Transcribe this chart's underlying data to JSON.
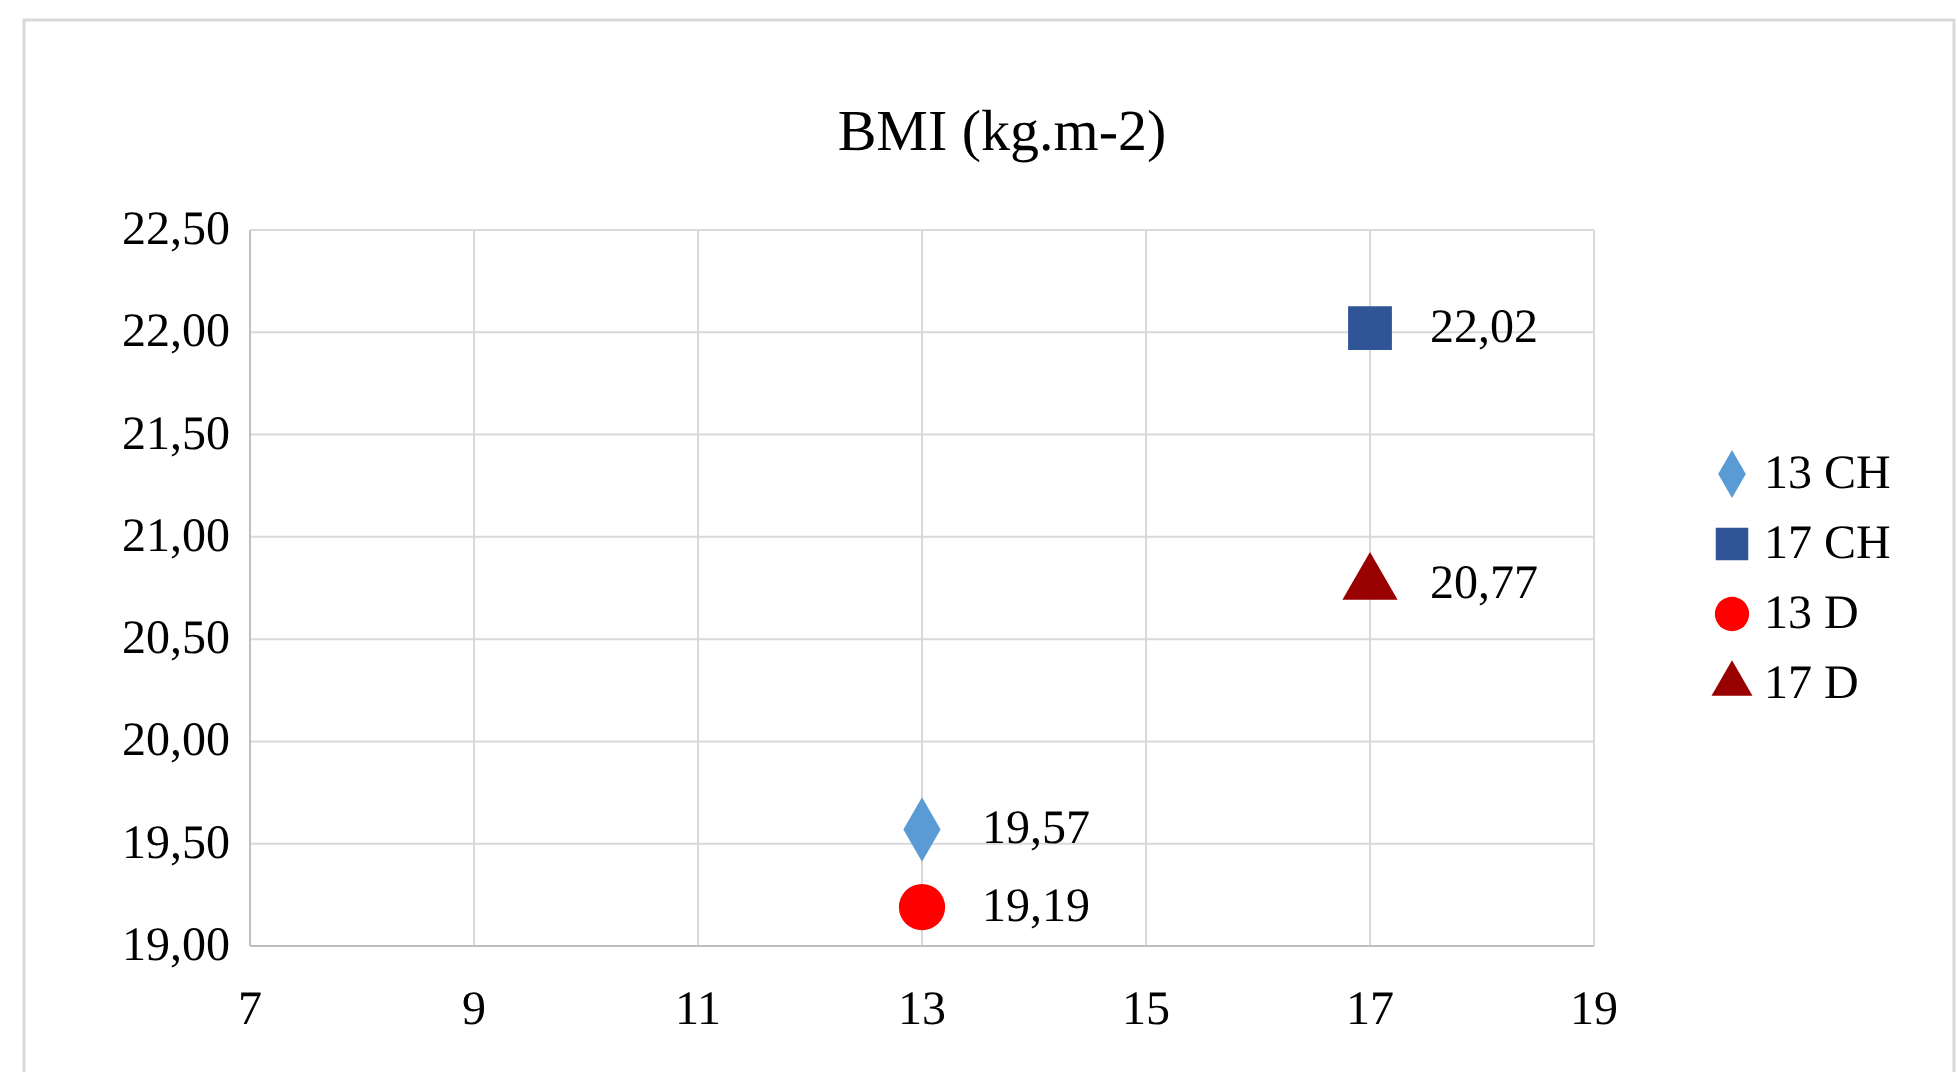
{
  "chart_data": {
    "type": "scatter",
    "title": "BMI (kg.m-2)",
    "x": [
      13,
      17
    ],
    "xlim": [
      7,
      19
    ],
    "xticks": [
      7,
      9,
      11,
      13,
      15,
      17,
      19
    ],
    "ylim": [
      19,
      22.5
    ],
    "yticks": [
      {
        "value": 19,
        "label": "19,00"
      },
      {
        "value": 19.5,
        "label": "19,50"
      },
      {
        "value": 20,
        "label": "20,00"
      },
      {
        "value": 20.5,
        "label": "20,50"
      },
      {
        "value": 21,
        "label": "21,00"
      },
      {
        "value": 21.5,
        "label": "21,50"
      },
      {
        "value": 22,
        "label": "22,00"
      },
      {
        "value": 22.5,
        "label": "22,50"
      }
    ],
    "grid": true,
    "legend": "right",
    "series": [
      {
        "name": "13 CH",
        "color": "#5b9bd5",
        "marker": "diamond",
        "values": [
          19.57,
          null
        ],
        "value_labels": [
          "19,57",
          null
        ]
      },
      {
        "name": "17 CH",
        "color": "#2f5597",
        "marker": "square",
        "values": [
          null,
          22.02
        ],
        "value_labels": [
          null,
          "22,02"
        ]
      },
      {
        "name": "13 D",
        "color": "#ff0000",
        "marker": "circle",
        "values": [
          19.19,
          null
        ],
        "value_labels": [
          "19,19",
          null
        ]
      },
      {
        "name": "17 D",
        "color": "#990000",
        "marker": "triangle",
        "values": [
          null,
          20.77
        ],
        "value_labels": [
          null,
          "20,77"
        ]
      }
    ]
  }
}
